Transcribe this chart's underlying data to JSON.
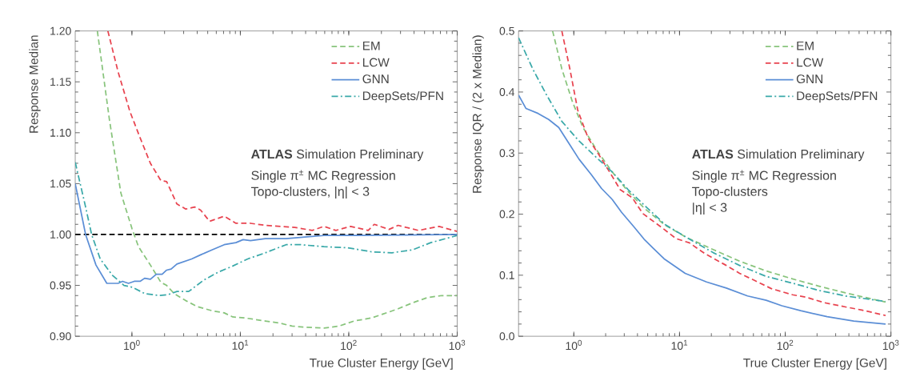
{
  "chart_data": [
    {
      "type": "line",
      "xlabel": "True Cluster Energy [GeV]",
      "ylabel": "Response Median",
      "log": "x",
      "xlim": [
        0.3,
        1000
      ],
      "ylim": [
        0.9,
        1.2
      ],
      "xticks": [
        {
          "value": 1,
          "label": "10$^{0}$"
        },
        {
          "value": 10,
          "label": "10$^{1}$"
        },
        {
          "value": 100,
          "label": "10$^{2}$"
        },
        {
          "value": 1000,
          "label": "10$^{3}$"
        }
      ],
      "yticks": [
        {
          "value": 0.9,
          "label": "0.90"
        },
        {
          "value": 0.95,
          "label": "0.95"
        },
        {
          "value": 1.0,
          "label": "1.00"
        },
        {
          "value": 1.05,
          "label": "1.05"
        },
        {
          "value": 1.1,
          "label": "1.10"
        },
        {
          "value": 1.15,
          "label": "1.15"
        },
        {
          "value": 1.2,
          "label": "1.20"
        }
      ],
      "legend": "top right",
      "ref_lines": [
        {
          "axis": "y",
          "value": 1.0,
          "color": "#000000",
          "line_style": "dashed"
        }
      ],
      "annotations": [
        "**ATLAS** Simulation Preliminary",
        "Single π$^{±}$ MC Regression",
        "Topo-clusters, |η| < 3"
      ],
      "series": [
        {
          "name": "EM",
          "color": "#88c47c",
          "line_style": "dashed",
          "x": [
            0.48,
            0.62,
            0.79,
            1.0,
            1.15,
            1.48,
            1.85,
            2.09,
            2.45,
            3.14,
            4.04,
            5.52,
            7.1,
            8.5,
            11,
            17,
            23,
            30,
            38,
            59,
            81,
            112,
            162,
            209,
            285,
            390,
            530,
            720,
            1000
          ],
          "values": [
            1.2,
            1.113,
            1.041,
            1.006,
            0.988,
            0.97,
            0.953,
            0.95,
            0.942,
            0.935,
            0.929,
            0.925,
            0.923,
            0.919,
            0.918,
            0.915,
            0.913,
            0.91,
            0.909,
            0.908,
            0.91,
            0.915,
            0.918,
            0.922,
            0.927,
            0.933,
            0.938,
            0.94,
            0.94
          ]
        },
        {
          "name": "LCW",
          "color": "#e8434f",
          "line_style": "dashed",
          "x": [
            0.6,
            0.745,
            0.957,
            1.19,
            1.48,
            1.85,
            2.09,
            2.6,
            3.14,
            3.79,
            4.3,
            5.2,
            7.1,
            9.1,
            12.4,
            17,
            31.8,
            46,
            59,
            76,
            104,
            151,
            172,
            235,
            285,
            440,
            680,
            1000
          ],
          "values": [
            1.2,
            1.16,
            1.121,
            1.095,
            1.07,
            1.053,
            1.052,
            1.03,
            1.025,
            1.027,
            1.024,
            1.013,
            1.018,
            1.011,
            1.011,
            1.009,
            1.007,
            1.004,
            1.008,
            1.004,
            1.008,
            1.004,
            1.01,
            1.005,
            1.009,
            1.004,
            1.008,
            1.003
          ]
        },
        {
          "name": "GNN",
          "color": "#5b8ed6",
          "line_style": "solid",
          "x": [
            0.3,
            0.374,
            0.466,
            0.587,
            0.745,
            0.82,
            0.93,
            1.05,
            1.19,
            1.31,
            1.48,
            1.68,
            1.9,
            2.09,
            2.3,
            2.6,
            3.56,
            4.3,
            5.52,
            7.1,
            9.1,
            10.6,
            12.4,
            17,
            26.4,
            43.5,
            59,
            112,
            1000
          ],
          "values": [
            1.05,
            1.0,
            0.97,
            0.952,
            0.952,
            0.954,
            0.952,
            0.954,
            0.954,
            0.957,
            0.956,
            0.961,
            0.961,
            0.965,
            0.966,
            0.971,
            0.976,
            0.98,
            0.985,
            0.99,
            0.992,
            0.995,
            0.994,
            0.996,
            0.996,
            0.998,
            0.999,
            0.999,
            1.0
          ]
        },
        {
          "name": "DeepSets/PFN",
          "color": "#3aa9a9",
          "line_style": "dashdot",
          "x": [
            0.3,
            0.374,
            0.425,
            0.51,
            0.66,
            0.845,
            1.02,
            1.31,
            1.79,
            2.16,
            2.6,
            3.34,
            4.57,
            6.25,
            8.5,
            11.7,
            17,
            26.4,
            36,
            59,
            98,
            162,
            250,
            390,
            570,
            1000
          ],
          "values": [
            1.071,
            1.027,
            1.0,
            0.976,
            0.96,
            0.95,
            0.948,
            0.942,
            0.94,
            0.941,
            0.944,
            0.944,
            0.955,
            0.963,
            0.969,
            0.976,
            0.982,
            0.99,
            0.99,
            0.988,
            0.987,
            0.983,
            0.982,
            0.985,
            0.992,
            0.999
          ]
        }
      ]
    },
    {
      "type": "line",
      "xlabel": "True Cluster Energy [GeV]",
      "ylabel": "Response IQR / (2 x Median)",
      "log": "x",
      "xlim": [
        0.3,
        1000
      ],
      "ylim": [
        0.0,
        0.5
      ],
      "xticks": [
        {
          "value": 1,
          "label": "10$^{0}$"
        },
        {
          "value": 10,
          "label": "10$^{1}$"
        },
        {
          "value": 100,
          "label": "10$^{2}$"
        },
        {
          "value": 1000,
          "label": "10$^{3}$"
        }
      ],
      "yticks": [
        {
          "value": 0.0,
          "label": "0.0"
        },
        {
          "value": 0.1,
          "label": "0.1"
        },
        {
          "value": 0.2,
          "label": "0.2"
        },
        {
          "value": 0.3,
          "label": "0.3"
        },
        {
          "value": 0.4,
          "label": "0.4"
        },
        {
          "value": 0.5,
          "label": "0.5"
        }
      ],
      "legend": "top right",
      "annotations": [
        "**ATLAS** Simulation Preliminary",
        "Single π$^{±}$ MC Regression",
        "Topo-clusters",
        "|η| < 3"
      ],
      "series": [
        {
          "name": "EM",
          "color": "#88c47c",
          "line_style": "dashed",
          "x": [
            0.63,
            0.77,
            0.97,
            1.22,
            1.63,
            2.31,
            3.27,
            4.62,
            7.3,
            11.6,
            20.8,
            37,
            66,
            117,
            209,
            372,
            890
          ],
          "values": [
            0.5,
            0.438,
            0.384,
            0.342,
            0.306,
            0.269,
            0.237,
            0.21,
            0.182,
            0.162,
            0.142,
            0.123,
            0.107,
            0.094,
            0.082,
            0.071,
            0.056
          ]
        },
        {
          "name": "LCW",
          "color": "#e8434f",
          "line_style": "dashed",
          "x": [
            0.77,
            0.917,
            1.09,
            1.37,
            1.73,
            2.18,
            2.75,
            3.57,
            4.49,
            6.93,
            9.25,
            12.4,
            17.5,
            27.7,
            37,
            52,
            74,
            117,
            157,
            235,
            372,
            530,
            890
          ],
          "values": [
            0.5,
            0.438,
            0.37,
            0.324,
            0.297,
            0.269,
            0.24,
            0.227,
            0.201,
            0.177,
            0.16,
            0.153,
            0.135,
            0.116,
            0.103,
            0.091,
            0.078,
            0.068,
            0.064,
            0.055,
            0.048,
            0.043,
            0.034
          ]
        },
        {
          "name": "GNN",
          "color": "#5b8ed6",
          "line_style": "solid",
          "x": [
            0.3,
            0.353,
            0.458,
            0.578,
            0.72,
            0.89,
            1.12,
            1.46,
            1.83,
            2.31,
            2.83,
            3.67,
            4.62,
            5.66,
            7.13,
            11.3,
            18,
            27.7,
            44,
            66,
            93,
            140,
            249,
            445,
            890
          ],
          "values": [
            0.395,
            0.373,
            0.365,
            0.355,
            0.342,
            0.317,
            0.29,
            0.265,
            0.242,
            0.224,
            0.203,
            0.18,
            0.159,
            0.144,
            0.127,
            0.103,
            0.089,
            0.079,
            0.066,
            0.059,
            0.05,
            0.042,
            0.032,
            0.025,
            0.02
          ]
        },
        {
          "name": "DeepSets/PFN",
          "color": "#3aa9a9",
          "line_style": "dashdot",
          "x": [
            0.3,
            0.408,
            0.545,
            0.77,
            1.09,
            1.54,
            2.31,
            3.27,
            4.62,
            7.3,
            11.6,
            20.8,
            37,
            66,
            117,
            209,
            372,
            890
          ],
          "values": [
            0.489,
            0.438,
            0.397,
            0.352,
            0.322,
            0.297,
            0.269,
            0.24,
            0.215,
            0.183,
            0.162,
            0.137,
            0.116,
            0.098,
            0.087,
            0.075,
            0.066,
            0.057
          ]
        }
      ]
    }
  ]
}
